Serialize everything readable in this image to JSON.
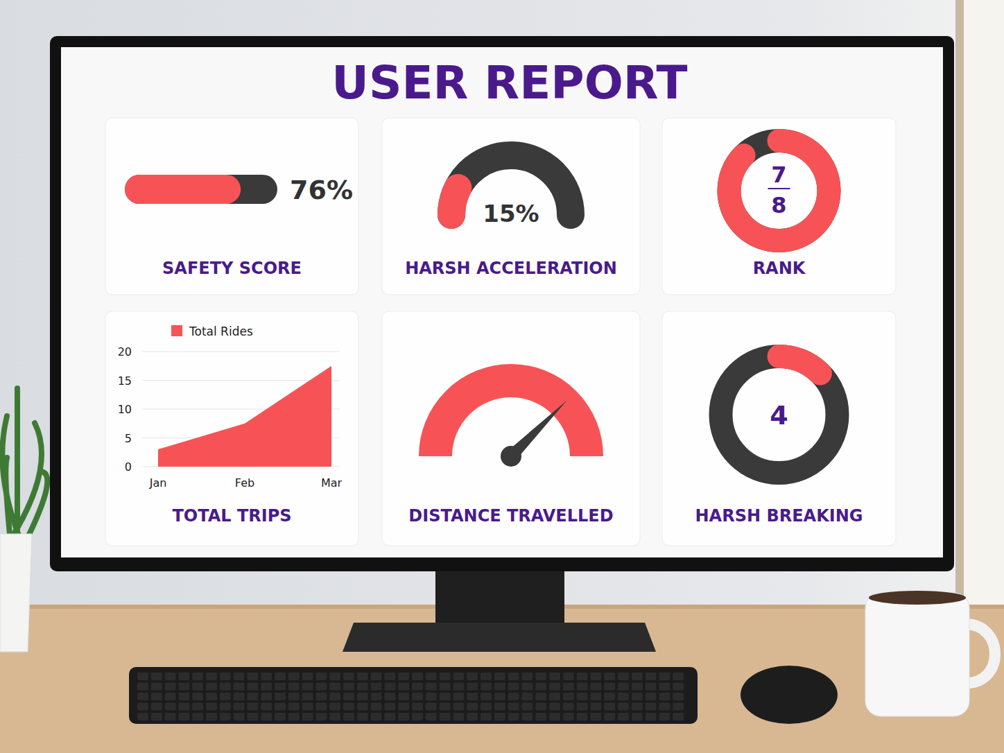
{
  "header": {
    "title": "USER REPORT"
  },
  "chart_data": [
    {
      "type": "progress",
      "title": "SAFETY SCORE",
      "values": [
        76
      ],
      "value_labels": [
        "76%"
      ],
      "ylim": [
        0,
        100
      ],
      "color": "#f75356",
      "data_labels": true
    },
    {
      "type": "gauge",
      "title": "HARSH ACCELERATION",
      "values": [
        15
      ],
      "value_labels": [
        "15%"
      ],
      "ylim": [
        0,
        100
      ],
      "color": "#f75356",
      "data_labels": true
    },
    {
      "type": "donut",
      "title": "RANK",
      "values": [
        7
      ],
      "ylim": [
        0,
        8
      ],
      "color": "#f75356",
      "data_labels": true
    },
    {
      "type": "area",
      "title": "TOTAL TRIPS",
      "categories": [
        "Jan",
        "Feb",
        "Mar"
      ],
      "series": [
        {
          "name": "Total Rides",
          "color": "#f75356",
          "values": [
            3,
            7.5,
            17.5
          ]
        }
      ],
      "ylim": [
        0,
        20
      ],
      "yticks": [
        0,
        5,
        10,
        15,
        20
      ],
      "grid": true,
      "legend": "top"
    },
    {
      "type": "gauge",
      "title": "DISTANCE TRAVELLED",
      "values": [
        75
      ],
      "ylim": [
        0,
        100
      ],
      "color": "#f75356",
      "marker": "needle"
    },
    {
      "type": "donut",
      "title": "HARSH BREAKING",
      "values": [
        4
      ],
      "ylim": [
        0,
        32
      ],
      "color": "#f75356",
      "data_labels": true
    }
  ]
}
